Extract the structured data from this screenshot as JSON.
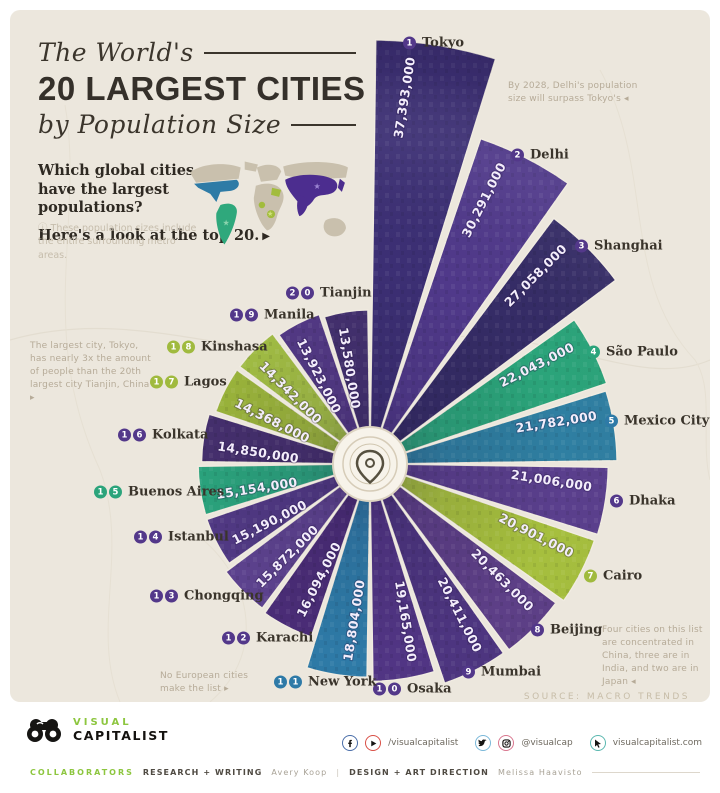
{
  "header": {
    "title_line1": "The World's",
    "title_line2": "20 LARGEST CITIES",
    "title_line3": "by Population Size",
    "intro_line1": "Which global cities have the largest populations?",
    "intro_bold": "Here's a look at the top 20.",
    "intro_arrow": "▶",
    "note": "ⓘ These population sizes include the entire surrounding metro areas."
  },
  "map": {
    "land": "#c9c0ad",
    "north_america": "#2e7ba6",
    "south_america": "#2fa87c",
    "asia": "#4c2d8f",
    "africa_accent": "#a2bc3d",
    "star_south_america": "#8ad4ad",
    "star_africa": "#d0e27c",
    "star_asia": "#9b85d2"
  },
  "chart_data": {
    "type": "rose",
    "title": "The World's 20 Largest Cities by Population Size",
    "value_unit": "people (metro area population)",
    "layout": {
      "angle_start_deg": -90,
      "wedge_deg": 18,
      "direction": "clockwise",
      "radius_linear_in_value": true
    },
    "region_colors": {
      "asia": "#53388a",
      "north_america": "#2e7aa7",
      "south_america": "#2ba47b",
      "africa": "#a0ba3e"
    },
    "cities": [
      {
        "rank": 1,
        "name": "Tokyo",
        "value": 37393000,
        "region": "asia",
        "color": "#3c2f74"
      },
      {
        "rank": 2,
        "name": "Delhi",
        "value": 30291000,
        "region": "asia",
        "color": "#50398a"
      },
      {
        "rank": 3,
        "name": "Shanghai",
        "value": 27058000,
        "region": "asia",
        "color": "#352c66"
      },
      {
        "rank": 4,
        "name": "São Paulo",
        "value": 22043000,
        "region": "south_america",
        "color": "#2ba47a"
      },
      {
        "rank": 5,
        "name": "Mexico City",
        "value": 21782000,
        "region": "north_america",
        "color": "#2f7fa2"
      },
      {
        "rank": 6,
        "name": "Dhaka",
        "value": 21006000,
        "region": "asia",
        "color": "#5a3f8d"
      },
      {
        "rank": 7,
        "name": "Cairo",
        "value": 20901000,
        "region": "africa",
        "color": "#a6bf3e"
      },
      {
        "rank": 8,
        "name": "Beijing",
        "value": 20463000,
        "region": "asia",
        "color": "#5d3f87"
      },
      {
        "rank": 9,
        "name": "Mumbai",
        "value": 20411000,
        "region": "asia",
        "color": "#4d3580"
      },
      {
        "rank": 10,
        "name": "Osaka",
        "value": 19165000,
        "region": "asia",
        "color": "#513584"
      },
      {
        "rank": 11,
        "name": "New York",
        "value": 18804000,
        "region": "north_america",
        "color": "#2e7aa7"
      },
      {
        "rank": 12,
        "name": "Karachi",
        "value": 16094000,
        "region": "asia",
        "color": "#4b2d78"
      },
      {
        "rank": 13,
        "name": "Chongqing",
        "value": 15872000,
        "region": "asia",
        "color": "#5e4390"
      },
      {
        "rank": 14,
        "name": "Istanbul",
        "value": 15190000,
        "region": "asia",
        "color": "#523a86"
      },
      {
        "rank": 15,
        "name": "Buenos Aires",
        "value": 15154000,
        "region": "south_america",
        "color": "#2ba57e"
      },
      {
        "rank": 16,
        "name": "Kolkata",
        "value": 14850000,
        "region": "asia",
        "color": "#46306f"
      },
      {
        "rank": 17,
        "name": "Lagos",
        "value": 14368000,
        "region": "africa",
        "color": "#9db73c"
      },
      {
        "rank": 18,
        "name": "Kinshasa",
        "value": 14342000,
        "region": "africa",
        "color": "#a4c045"
      },
      {
        "rank": 19,
        "name": "Manila",
        "value": 13923000,
        "region": "asia",
        "color": "#543a87"
      },
      {
        "rank": 20,
        "name": "Tianjin",
        "value": 13580000,
        "region": "asia",
        "color": "#443170"
      }
    ]
  },
  "annotations": {
    "delhi_note": "By 2028, Delhi's population size will surpass Tokyo's ◂",
    "tokyo_note": "The largest city, Tokyo, has nearly 3x the amount of people than the 20th largest city Tianjin, China ▸",
    "europe_note": "No European cities make the list ▸",
    "asia_note": "Four cities on this list are concentrated in China, three are in India, and two are in Japan ◂"
  },
  "source": "SOURCE:  MACRO TRENDS",
  "footer": {
    "brand_line1": "VISUAL",
    "brand_line2": "CAPITALIST",
    "social_handle1": "/visualcapitalist",
    "social_handle2": "@visualcap",
    "social_handle3": "visualcapitalist.com",
    "collaborators_label": "COLLABORATORS",
    "research_label": "RESEARCH + WRITING",
    "research_name": "Avery Koop",
    "divider": "|",
    "design_label": "DESIGN + ART DIRECTION",
    "design_name": "Melissa Haavisto"
  }
}
